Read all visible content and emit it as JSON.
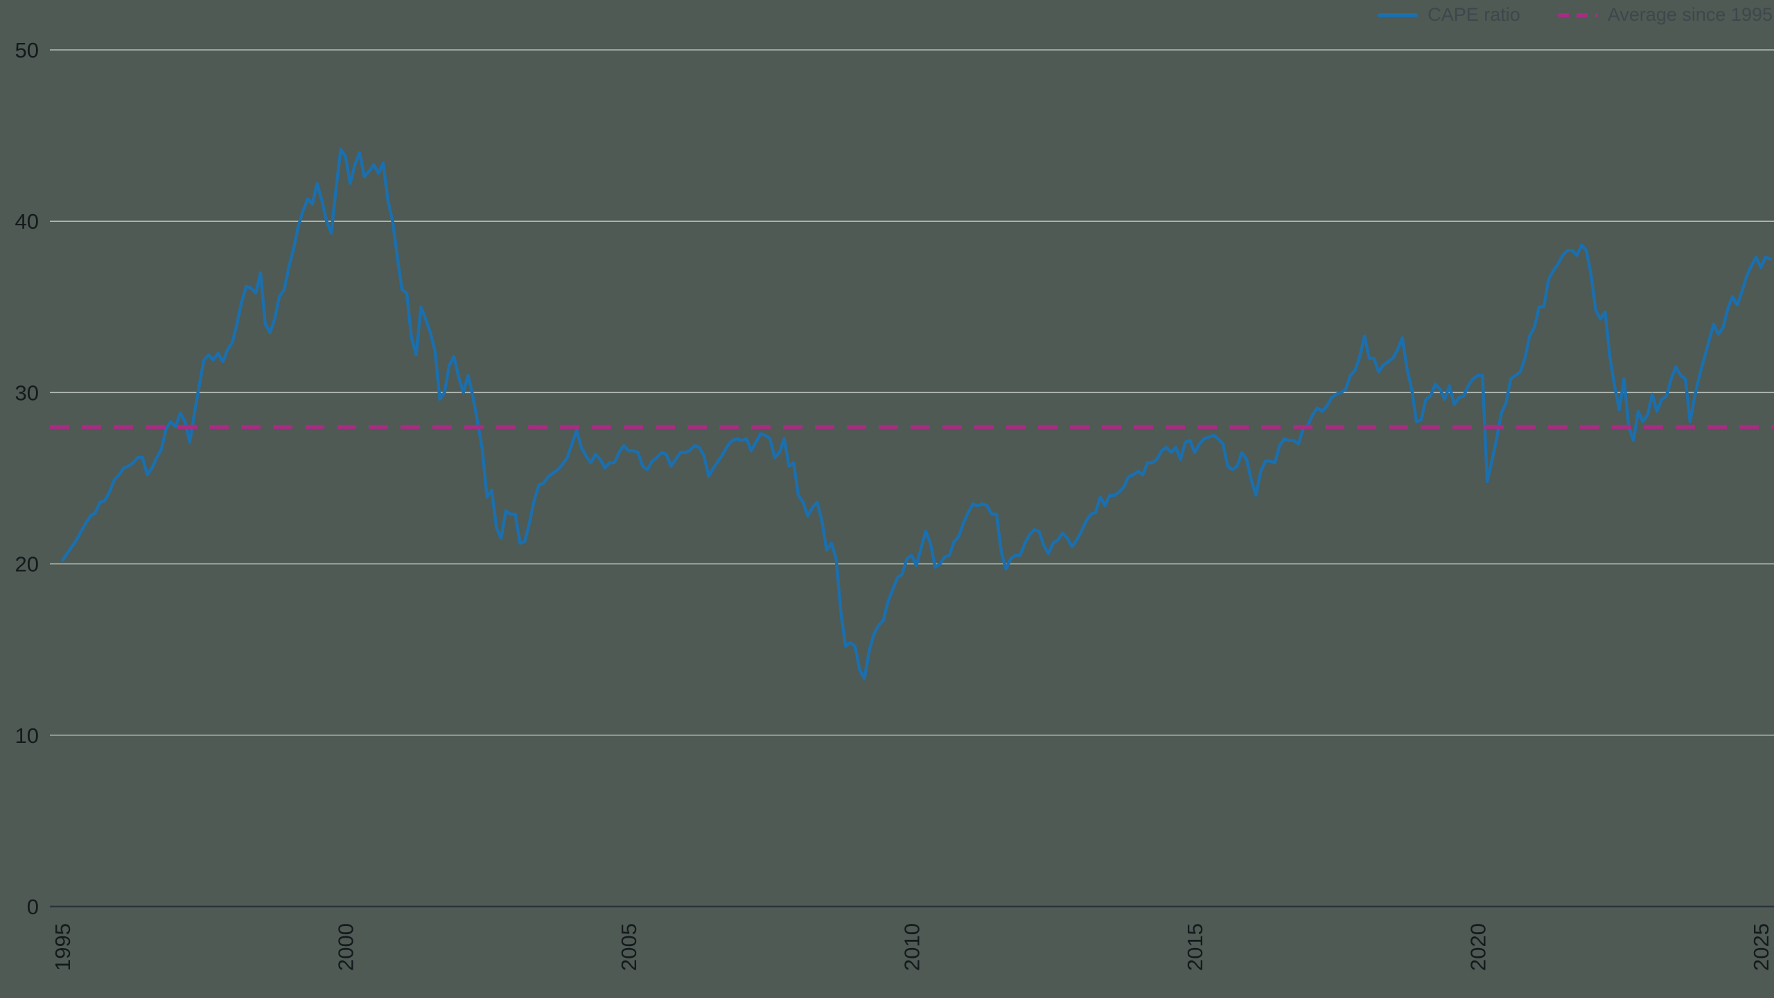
{
  "colors": {
    "background": "#4e5a53",
    "cape_line": "#1b6fae",
    "average_line": "#a62d82",
    "gridline": "#b6bcb6",
    "axis_line": "#2e3338",
    "tick_text": "#15191d",
    "legend_text": "#3f464c"
  },
  "legend": {
    "items": [
      {
        "label": "CAPE ratio",
        "style": "solid"
      },
      {
        "label": "Average since 1995",
        "style": "dashed"
      }
    ]
  },
  "chart_data": {
    "type": "line",
    "title": "",
    "xlabel": "",
    "ylabel": "",
    "grid": "horizontal",
    "legend_position": "top-right",
    "xlim": [
      1995,
      2025
    ],
    "ylim": [
      0,
      50
    ],
    "x_ticks": [
      1995,
      2000,
      2005,
      2010,
      2015,
      2020,
      2025
    ],
    "y_ticks": [
      0,
      10,
      20,
      30,
      40,
      50
    ],
    "x_start": 1995.0,
    "x_step_years": 0.0833333,
    "series": [
      {
        "name": "CAPE ratio",
        "color": "#1b6fae",
        "style": "solid",
        "values": [
          20.2,
          20.6,
          21.0,
          21.4,
          21.9,
          22.4,
          22.8,
          23.0,
          23.6,
          23.7,
          24.2,
          24.9,
          25.2,
          25.6,
          25.7,
          25.9,
          26.2,
          26.2,
          25.2,
          25.6,
          26.2,
          26.7,
          27.9,
          28.3,
          28.0,
          28.8,
          28.3,
          27.1,
          28.8,
          30.4,
          31.9,
          32.2,
          31.9,
          32.3,
          31.8,
          32.5,
          32.9,
          34.0,
          35.3,
          36.2,
          36.1,
          35.8,
          37.0,
          34.0,
          33.5,
          34.3,
          35.6,
          36.0,
          37.3,
          38.4,
          39.7,
          40.6,
          41.3,
          41.0,
          42.2,
          41.2,
          40.0,
          39.3,
          41.9,
          44.2,
          43.8,
          42.2,
          43.3,
          44.0,
          42.6,
          42.9,
          43.3,
          42.8,
          43.4,
          41.2,
          40.0,
          37.9,
          36.0,
          35.8,
          33.2,
          32.2,
          35.0,
          34.3,
          33.5,
          32.4,
          29.6,
          30.0,
          31.6,
          32.1,
          30.9,
          30.0,
          31.0,
          29.8,
          28.3,
          26.7,
          23.9,
          24.3,
          22.1,
          21.5,
          23.1,
          22.9,
          22.9,
          21.2,
          21.3,
          22.4,
          23.7,
          24.6,
          24.7,
          25.1,
          25.3,
          25.5,
          25.8,
          26.2,
          27.0,
          27.8,
          26.8,
          26.3,
          25.9,
          26.4,
          26.1,
          25.6,
          25.9,
          25.9,
          26.5,
          26.9,
          26.6,
          26.6,
          26.5,
          25.7,
          25.5,
          26.0,
          26.2,
          26.5,
          26.4,
          25.7,
          26.1,
          26.5,
          26.5,
          26.6,
          26.9,
          26.8,
          26.3,
          25.1,
          25.6,
          26.0,
          26.4,
          26.9,
          27.2,
          27.3,
          27.2,
          27.3,
          26.6,
          27.1,
          27.6,
          27.5,
          27.3,
          26.2,
          26.5,
          27.3,
          25.7,
          25.9,
          24.0,
          23.6,
          22.8,
          23.3,
          23.6,
          22.5,
          20.8,
          21.2,
          20.3,
          17.2,
          15.2,
          15.4,
          15.2,
          13.8,
          13.3,
          14.9,
          15.9,
          16.4,
          16.7,
          17.8,
          18.5,
          19.2,
          19.4,
          20.3,
          20.5,
          19.9,
          20.9,
          21.9,
          21.2,
          19.8,
          20.0,
          20.4,
          20.5,
          21.3,
          21.6,
          22.4,
          23.0,
          23.5,
          23.4,
          23.5,
          23.4,
          22.9,
          22.9,
          20.7,
          19.7,
          20.3,
          20.5,
          20.5,
          21.2,
          21.7,
          22.0,
          21.9,
          21.1,
          20.6,
          21.2,
          21.4,
          21.8,
          21.5,
          21.0,
          21.4,
          21.9,
          22.5,
          22.9,
          23.0,
          23.9,
          23.4,
          24.0,
          24.0,
          24.2,
          24.5,
          25.1,
          25.2,
          25.4,
          25.2,
          25.9,
          25.9,
          26.1,
          26.6,
          26.8,
          26.5,
          26.8,
          26.1,
          27.1,
          27.2,
          26.5,
          27.0,
          27.3,
          27.4,
          27.5,
          27.3,
          27.0,
          25.7,
          25.5,
          25.7,
          26.5,
          26.1,
          24.9,
          24.0,
          25.4,
          26.0,
          26.0,
          25.9,
          26.9,
          27.3,
          27.2,
          27.2,
          27.0,
          27.9,
          28.1,
          28.7,
          29.1,
          28.9,
          29.2,
          29.7,
          29.9,
          30.0,
          30.2,
          31.0,
          31.3,
          32.1,
          33.3,
          32.0,
          32.0,
          31.2,
          31.6,
          31.8,
          32.0,
          32.5,
          33.2,
          31.4,
          30.2,
          28.3,
          28.4,
          29.6,
          29.8,
          30.5,
          30.2,
          29.6,
          30.4,
          29.3,
          29.7,
          29.8,
          30.4,
          30.8,
          31.0,
          31.0,
          24.8,
          26.0,
          27.3,
          28.8,
          29.4,
          30.8,
          31.0,
          31.2,
          32.0,
          33.3,
          33.8,
          35.0,
          35.0,
          36.6,
          37.1,
          37.5,
          38.0,
          38.3,
          38.3,
          38.0,
          38.6,
          38.3,
          36.9,
          34.8,
          34.3,
          34.7,
          32.1,
          30.4,
          29.0,
          30.8,
          28.0,
          27.2,
          28.9,
          28.3,
          28.7,
          29.9,
          28.9,
          29.6,
          29.8,
          30.8,
          31.5,
          31.0,
          30.8,
          28.3,
          29.8,
          31.0,
          32.0,
          33.0,
          34.0,
          33.4,
          33.8,
          34.9,
          35.6,
          35.1,
          35.9,
          36.8,
          37.4,
          37.9,
          37.3,
          37.9,
          37.8
        ]
      },
      {
        "name": "Average since 1995",
        "color": "#a62d82",
        "style": "dashed",
        "constant": 28
      }
    ]
  }
}
